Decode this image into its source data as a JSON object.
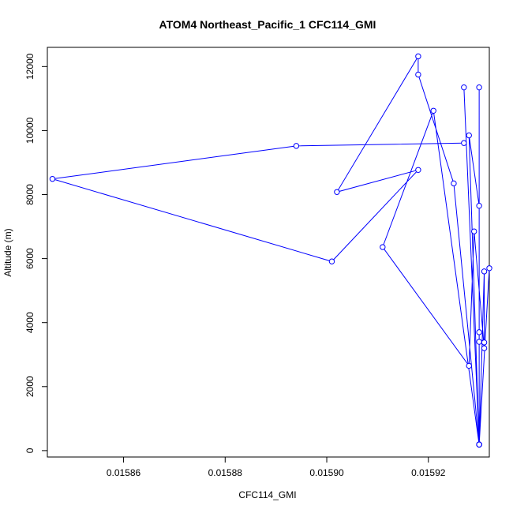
{
  "chart_data": {
    "type": "line",
    "title": "ATOM4 Northeast_Pacific_1 CFC114_GMI",
    "xlabel": "CFC114_GMI",
    "ylabel": "Altitude (m)",
    "xlim": [
      0.015845,
      0.015932
    ],
    "ylim": [
      -200,
      12600
    ],
    "x_ticks": [
      0.01586,
      0.01588,
      0.0159,
      0.01592
    ],
    "x_tick_labels": [
      "0.01586",
      "0.01588",
      "0.01590",
      "0.01592"
    ],
    "y_ticks": [
      0,
      2000,
      4000,
      6000,
      8000,
      10000,
      12000
    ],
    "y_tick_labels": [
      "0",
      "2000",
      "4000",
      "6000",
      "8000",
      "10000",
      "12000"
    ],
    "marker": "open-circle",
    "grid": false,
    "series": [
      {
        "color": "#0000ff",
        "points": [
          {
            "x": 0.01593,
            "y": 190
          },
          {
            "x": 0.01593,
            "y": 3400
          },
          {
            "x": 0.01593,
            "y": 190
          },
          {
            "x": 0.01593,
            "y": 3700
          },
          {
            "x": 0.01593,
            "y": 190
          },
          {
            "x": 0.015932,
            "y": 5700
          },
          {
            "x": 0.01593,
            "y": 190
          },
          {
            "x": 0.015927,
            "y": 11350
          },
          {
            "x": 0.01593,
            "y": 190
          },
          {
            "x": 0.01593,
            "y": 11350
          },
          {
            "x": 0.01593,
            "y": 190
          },
          {
            "x": 0.01593,
            "y": 7650
          },
          {
            "x": 0.015928,
            "y": 9850
          },
          {
            "x": 0.01593,
            "y": 190
          },
          {
            "x": 0.015921,
            "y": 10620
          },
          {
            "x": 0.015911,
            "y": 6360
          },
          {
            "x": 0.015928,
            "y": 2650
          },
          {
            "x": 0.015929,
            "y": 6850
          },
          {
            "x": 0.015931,
            "y": 3200
          },
          {
            "x": 0.015931,
            "y": 3380
          },
          {
            "x": 0.015931,
            "y": 5600
          },
          {
            "x": 0.01593,
            "y": 190
          },
          {
            "x": 0.015925,
            "y": 8350
          },
          {
            "x": 0.015918,
            "y": 11750
          },
          {
            "x": 0.015918,
            "y": 12320
          },
          {
            "x": 0.015902,
            "y": 8080
          },
          {
            "x": 0.015918,
            "y": 8770
          },
          {
            "x": 0.015901,
            "y": 5910
          },
          {
            "x": 0.015846,
            "y": 8490
          },
          {
            "x": 0.015894,
            "y": 9520
          },
          {
            "x": 0.015927,
            "y": 9610
          }
        ]
      }
    ]
  }
}
